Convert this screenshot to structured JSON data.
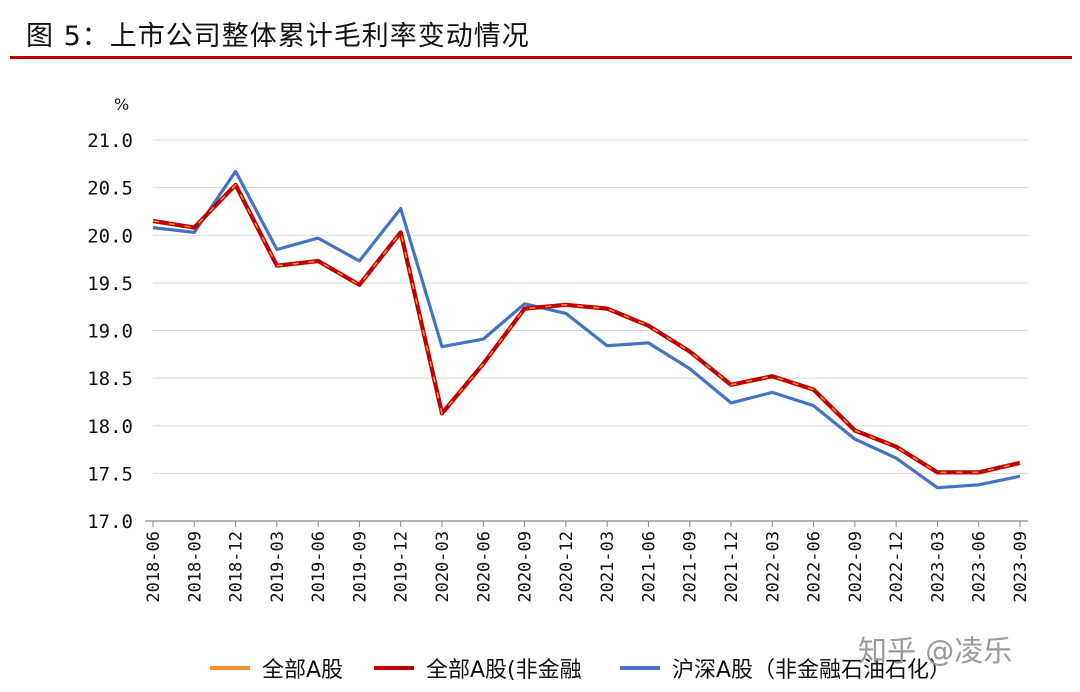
{
  "title": "图 5：上市公司整体累计毛利率变动情况",
  "watermark": "知乎 @凌乐",
  "chart_data": {
    "type": "line",
    "unit_label": "%",
    "ylim": [
      17.0,
      21.0
    ],
    "yticks": [
      "21.0",
      "20.5",
      "20.0",
      "19.5",
      "19.0",
      "18.5",
      "18.0",
      "17.5",
      "17.0"
    ],
    "ytick_values": [
      21.0,
      20.5,
      20.0,
      19.5,
      19.0,
      18.5,
      18.0,
      17.5,
      17.0
    ],
    "grid": "horizontal",
    "legend_position": "bottom",
    "categories": [
      "2018-06",
      "2018-09",
      "2018-12",
      "2019-03",
      "2019-06",
      "2019-09",
      "2019-12",
      "2020-03",
      "2020-06",
      "2020-09",
      "2020-12",
      "2021-03",
      "2021-06",
      "2021-09",
      "2021-12",
      "2022-03",
      "2022-06",
      "2022-09",
      "2022-12",
      "2023-03",
      "2023-06",
      "2023-09"
    ],
    "series": [
      {
        "name": "全部A股",
        "color": "#f28e2b",
        "values": [
          20.15,
          20.08,
          20.53,
          19.68,
          19.73,
          19.48,
          20.03,
          18.13,
          18.65,
          19.23,
          19.27,
          19.23,
          19.05,
          18.78,
          18.43,
          18.52,
          18.38,
          17.95,
          17.78,
          17.51,
          17.51,
          17.61
        ]
      },
      {
        "name": "全部A股(非金融",
        "color": "#c00000",
        "values": [
          20.15,
          20.08,
          20.53,
          19.68,
          19.73,
          19.48,
          20.03,
          18.13,
          18.65,
          19.23,
          19.27,
          19.23,
          19.05,
          18.78,
          18.43,
          18.52,
          18.38,
          17.95,
          17.78,
          17.51,
          17.51,
          17.61
        ]
      },
      {
        "name": "沪深A股（非金融石油石化）",
        "color": "#4472c4",
        "values": [
          20.08,
          20.03,
          20.67,
          19.85,
          19.97,
          19.73,
          20.28,
          18.83,
          18.91,
          19.28,
          19.18,
          18.84,
          18.87,
          18.6,
          18.24,
          18.35,
          18.21,
          17.86,
          17.66,
          17.35,
          17.38,
          17.47
        ]
      }
    ]
  }
}
